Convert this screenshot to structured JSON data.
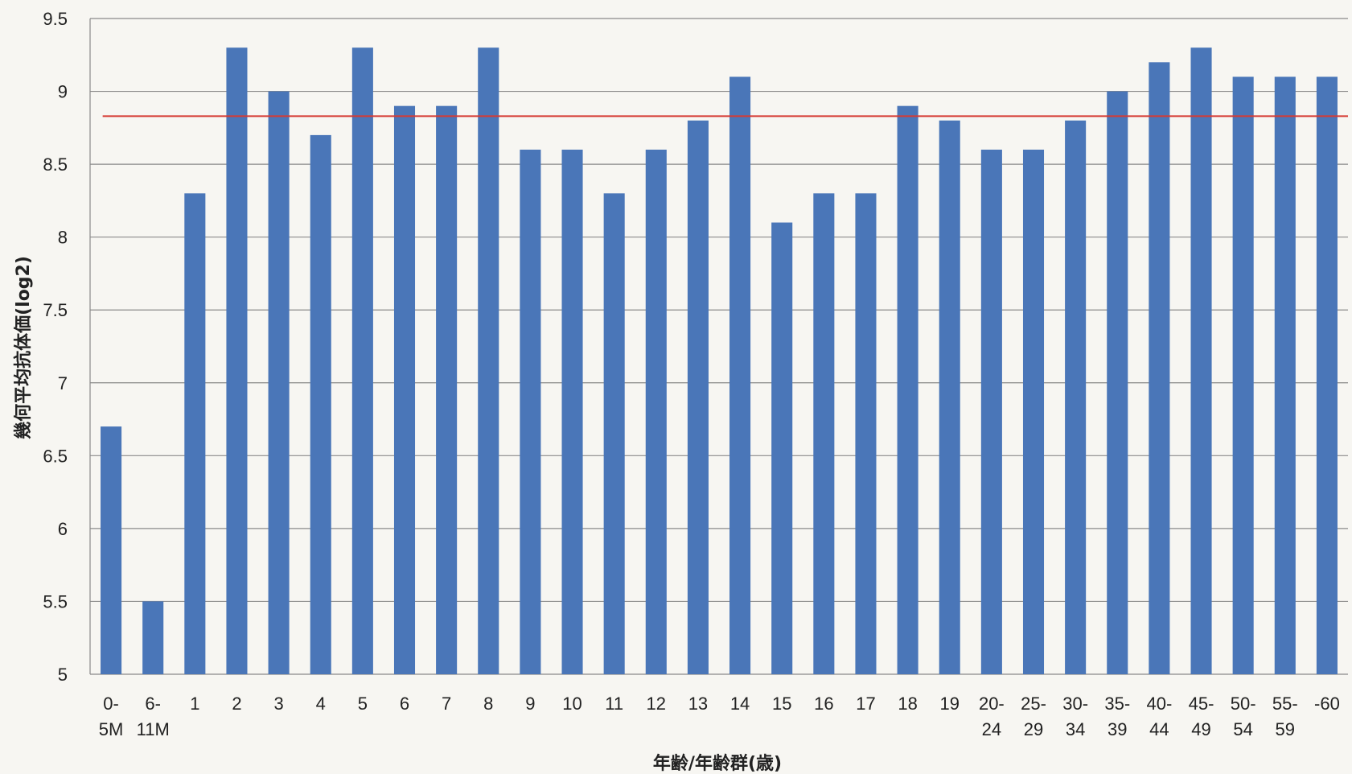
{
  "chart_data": {
    "type": "bar",
    "xlabel": "年齢/年齢群(歳)",
    "ylabel": "幾何平均抗体価(log2)",
    "ylim": [
      5,
      9.5
    ],
    "yticks": [
      "5",
      "5.5",
      "6",
      "6.5",
      "7",
      "7.5",
      "8",
      "8.5",
      "9",
      "9.5"
    ],
    "grid": true,
    "categories": [
      [
        "0-",
        "5M"
      ],
      [
        "6-",
        "11M"
      ],
      [
        "1"
      ],
      [
        "2"
      ],
      [
        "3"
      ],
      [
        "4"
      ],
      [
        "5"
      ],
      [
        "6"
      ],
      [
        "7"
      ],
      [
        "8"
      ],
      [
        "9"
      ],
      [
        "10"
      ],
      [
        "11"
      ],
      [
        "12"
      ],
      [
        "13"
      ],
      [
        "14"
      ],
      [
        "15"
      ],
      [
        "16"
      ],
      [
        "17"
      ],
      [
        "18"
      ],
      [
        "19"
      ],
      [
        "20-",
        "24"
      ],
      [
        "25-",
        "29"
      ],
      [
        "30-",
        "34"
      ],
      [
        "35-",
        "39"
      ],
      [
        "40-",
        "44"
      ],
      [
        "45-",
        "49"
      ],
      [
        "50-",
        "54"
      ],
      [
        "55-",
        "59"
      ],
      [
        "-60"
      ]
    ],
    "values": [
      6.7,
      5.5,
      8.3,
      9.3,
      9.0,
      8.7,
      9.3,
      8.9,
      8.9,
      9.3,
      8.6,
      8.6,
      8.3,
      8.6,
      8.8,
      9.1,
      8.1,
      8.3,
      8.3,
      8.9,
      8.8,
      8.6,
      8.6,
      8.8,
      9.0,
      9.2,
      9.3,
      9.1,
      9.1,
      9.1
    ],
    "reference_line": 8.83,
    "colors": {
      "bar": "#4a76b8",
      "reference_line": "#d63a32",
      "grid": "#8a8a8a"
    }
  }
}
